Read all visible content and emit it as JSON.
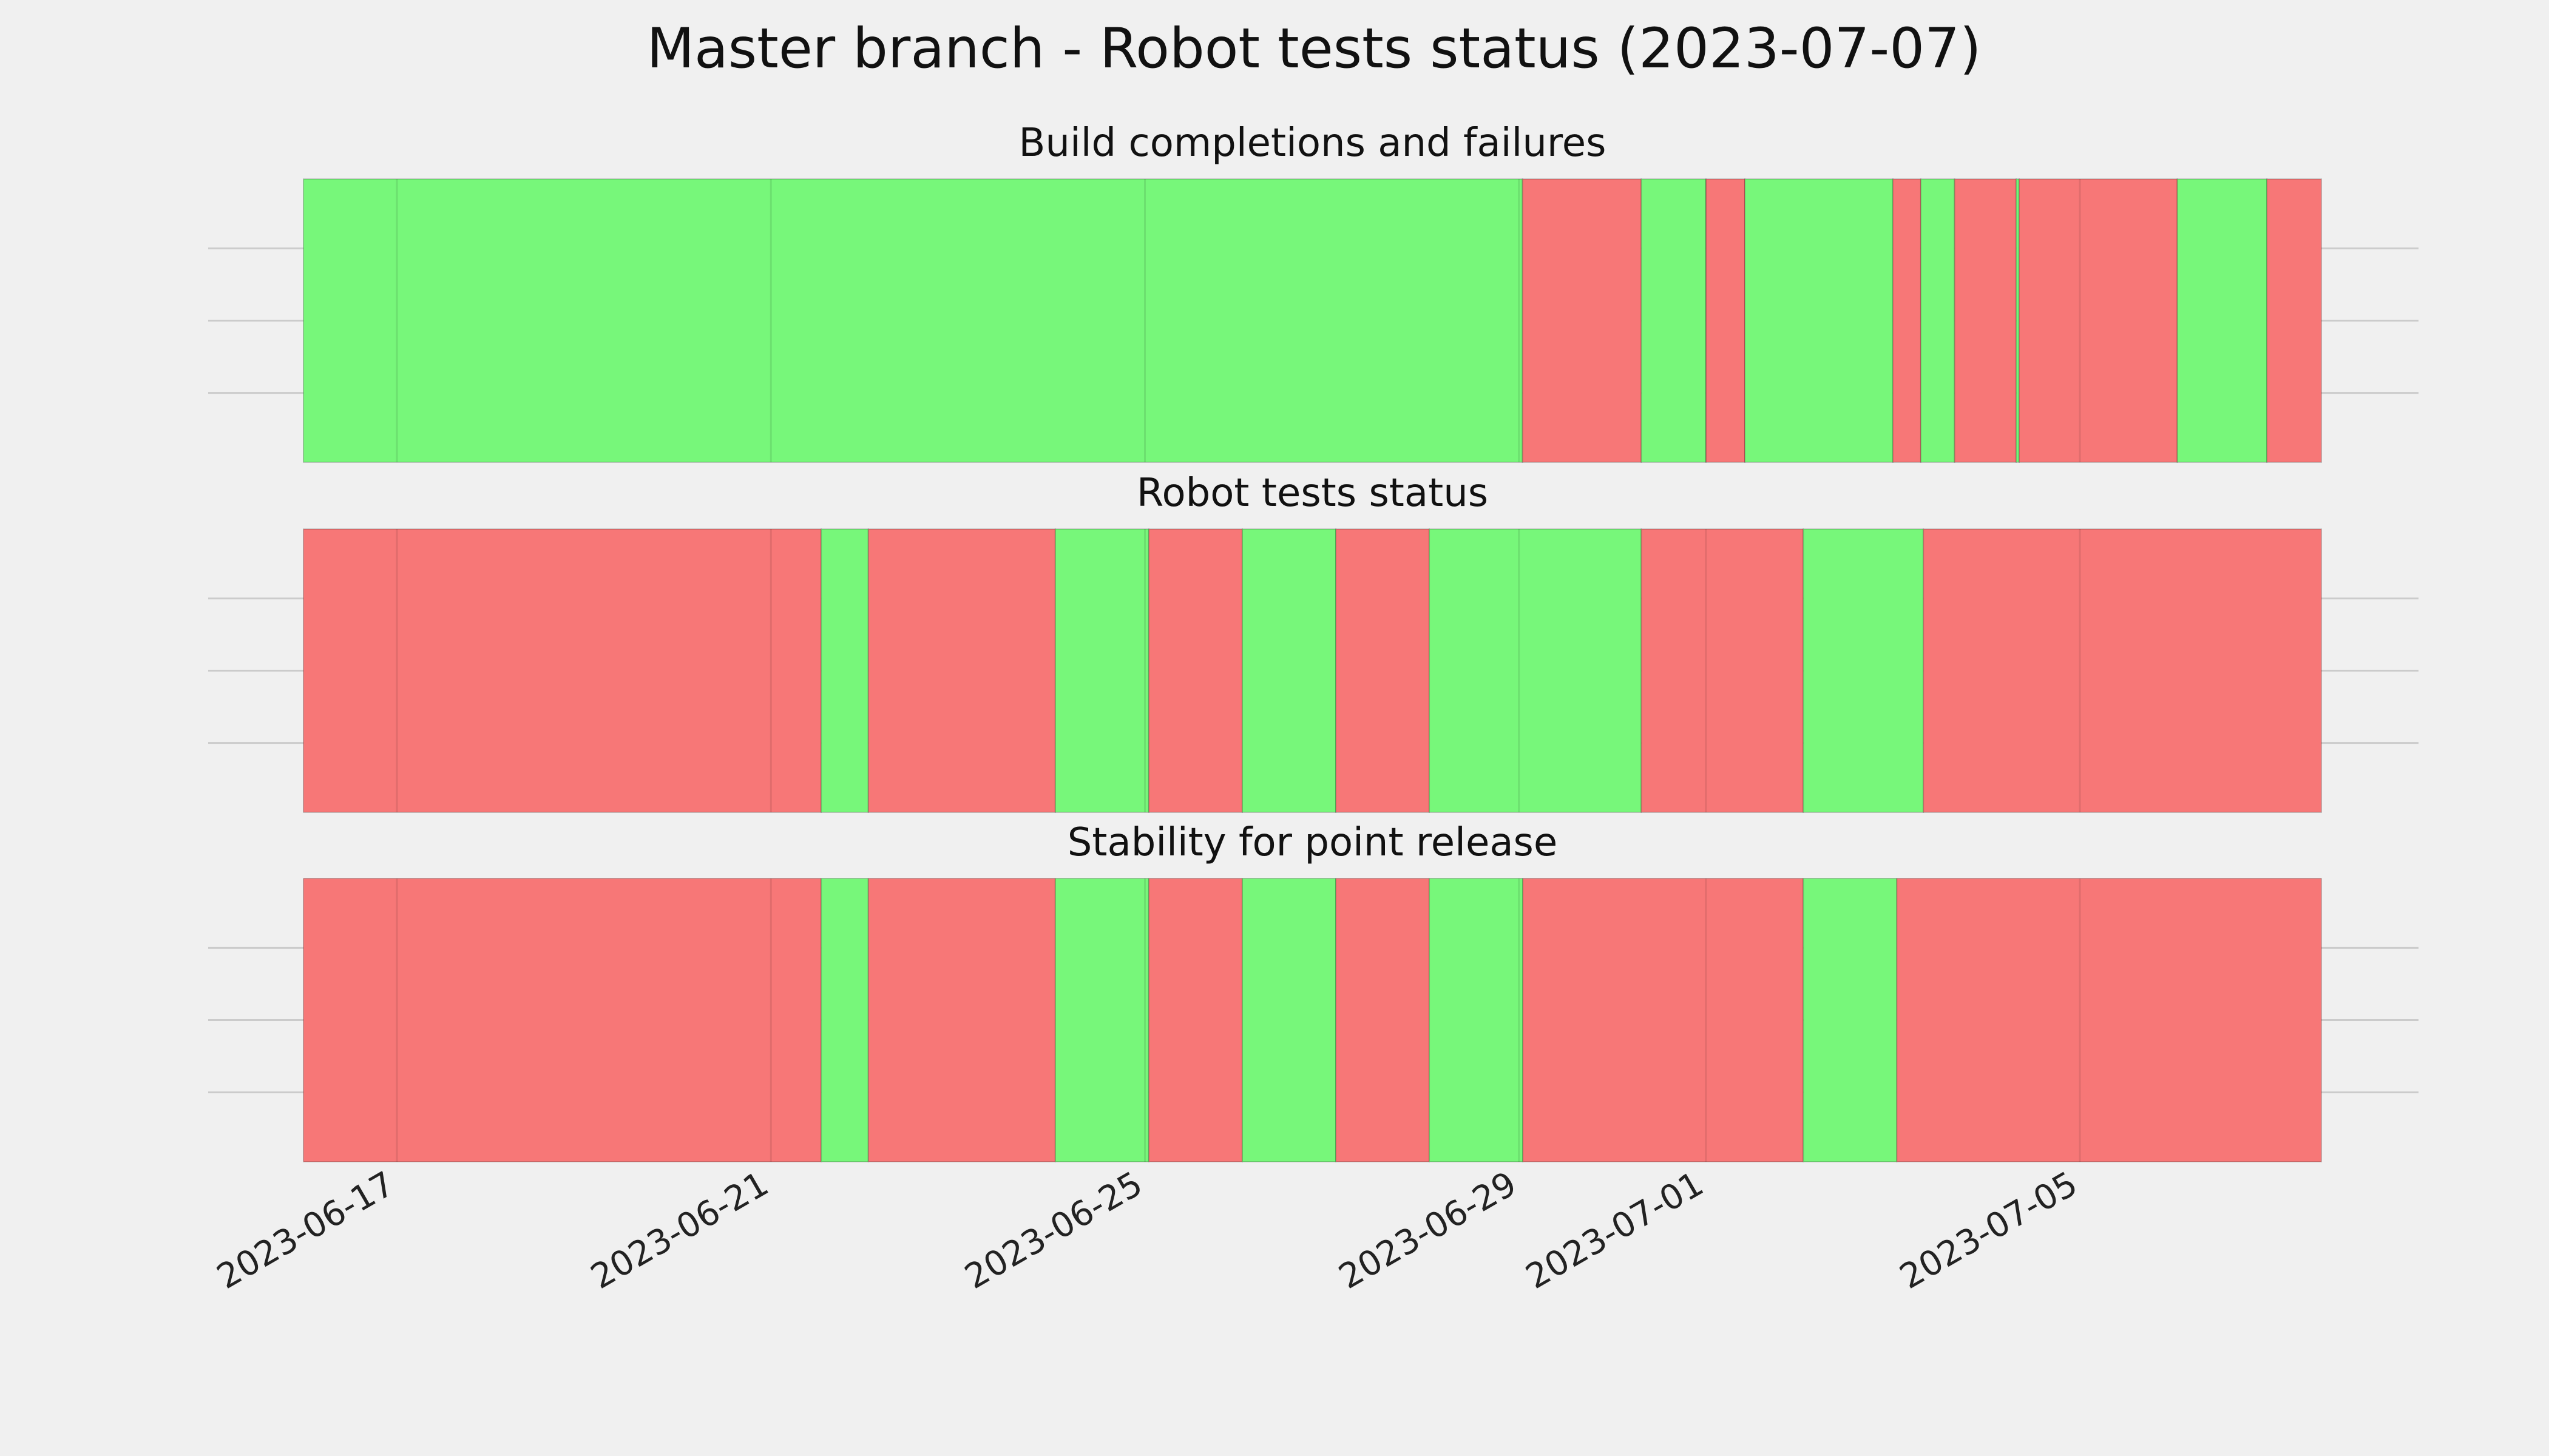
{
  "figure": {
    "title": "Master branch - Robot tests status (2023-07-07)"
  },
  "colors": {
    "pass": "#77f77a",
    "fail": "#f77777",
    "background": "#f0f0f0",
    "grid": "#cbcbcb"
  },
  "chart_data": {
    "type": "status-timeline",
    "x_axis": {
      "type": "date",
      "range": [
        "2023-06-16",
        "2023-07-07T14:00"
      ],
      "ticks": [
        "2023-06-17",
        "2023-06-21",
        "2023-06-25",
        "2023-06-29",
        "2023-07-01",
        "2023-07-05"
      ],
      "tick_labels": [
        "2023-06-17",
        "2023-06-21",
        "2023-06-25",
        "2023-06-29",
        "2023-07-01",
        "2023-07-05"
      ]
    },
    "grid": true,
    "panels": [
      {
        "title": "Build completions and failures",
        "segments": [
          {
            "start": "2023-06-16T00:00",
            "end": "2023-06-29T00:55",
            "status": "pass"
          },
          {
            "start": "2023-06-29T00:55",
            "end": "2023-06-30T07:25",
            "status": "fail"
          },
          {
            "start": "2023-06-30T07:25",
            "end": "2023-07-01T00:00",
            "status": "pass"
          },
          {
            "start": "2023-07-01T00:00",
            "end": "2023-07-01T10:00",
            "status": "fail"
          },
          {
            "start": "2023-07-01T10:00",
            "end": "2023-07-03T00:00",
            "status": "pass"
          },
          {
            "start": "2023-07-03T00:00",
            "end": "2023-07-03T07:10",
            "status": "fail"
          },
          {
            "start": "2023-07-03T07:10",
            "end": "2023-07-03T15:50",
            "status": "pass"
          },
          {
            "start": "2023-07-03T15:50",
            "end": "2023-07-04T07:40",
            "status": "fail"
          },
          {
            "start": "2023-07-04T07:40",
            "end": "2023-07-04T08:25",
            "status": "pass"
          },
          {
            "start": "2023-07-04T08:25",
            "end": "2023-07-06T01:00",
            "status": "fail"
          },
          {
            "start": "2023-07-06T01:00",
            "end": "2023-07-07T00:00",
            "status": "pass"
          },
          {
            "start": "2023-07-07T00:00",
            "end": "2023-07-07T14:00",
            "status": "fail"
          }
        ]
      },
      {
        "title": "Robot tests status",
        "segments": [
          {
            "start": "2023-06-16T00:00",
            "end": "2023-06-21T12:55",
            "status": "fail"
          },
          {
            "start": "2023-06-21T12:55",
            "end": "2023-06-22T01:00",
            "status": "pass"
          },
          {
            "start": "2023-06-22T01:00",
            "end": "2023-06-24T01:00",
            "status": "fail"
          },
          {
            "start": "2023-06-24T01:00",
            "end": "2023-06-25T01:00",
            "status": "pass"
          },
          {
            "start": "2023-06-25T01:00",
            "end": "2023-06-26T01:00",
            "status": "fail"
          },
          {
            "start": "2023-06-26T01:00",
            "end": "2023-06-27T01:00",
            "status": "pass"
          },
          {
            "start": "2023-06-27T01:00",
            "end": "2023-06-28T01:00",
            "status": "fail"
          },
          {
            "start": "2023-06-28T01:00",
            "end": "2023-06-30T07:25",
            "status": "pass"
          },
          {
            "start": "2023-06-30T07:25",
            "end": "2023-07-02T01:00",
            "status": "fail"
          },
          {
            "start": "2023-07-02T01:00",
            "end": "2023-07-03T07:50",
            "status": "pass"
          },
          {
            "start": "2023-07-03T07:50",
            "end": "2023-07-07T14:00",
            "status": "fail"
          }
        ]
      },
      {
        "title": "Stability for point release",
        "segments": [
          {
            "start": "2023-06-16T00:00",
            "end": "2023-06-21T12:55",
            "status": "fail"
          },
          {
            "start": "2023-06-21T12:55",
            "end": "2023-06-22T01:00",
            "status": "pass"
          },
          {
            "start": "2023-06-22T01:00",
            "end": "2023-06-24T01:00",
            "status": "fail"
          },
          {
            "start": "2023-06-24T01:00",
            "end": "2023-06-25T01:00",
            "status": "pass"
          },
          {
            "start": "2023-06-25T01:00",
            "end": "2023-06-26T01:00",
            "status": "fail"
          },
          {
            "start": "2023-06-26T01:00",
            "end": "2023-06-27T01:00",
            "status": "pass"
          },
          {
            "start": "2023-06-27T01:00",
            "end": "2023-06-28T01:00",
            "status": "fail"
          },
          {
            "start": "2023-06-28T01:00",
            "end": "2023-06-29T01:00",
            "status": "pass"
          },
          {
            "start": "2023-06-29T01:00",
            "end": "2023-07-02T01:00",
            "status": "fail"
          },
          {
            "start": "2023-07-02T01:00",
            "end": "2023-07-03T01:00",
            "status": "pass"
          },
          {
            "start": "2023-07-03T01:00",
            "end": "2023-07-07T14:00",
            "status": "fail"
          }
        ]
      }
    ]
  }
}
